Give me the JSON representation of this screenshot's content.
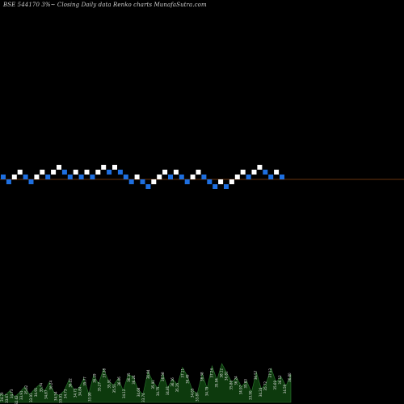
{
  "header": {
    "title": "BSE 544170  3%~   Closing Daily data  Renko  charts MunafaSutra.com"
  },
  "colors": {
    "background": "#000000",
    "up_brick": "#ffffff",
    "down_brick": "#1e6fe0",
    "reference_line": "#8b4513",
    "volume": "#0d3a0d",
    "volume_top": "#2e7d32",
    "volume_label": "#e0e0e0"
  },
  "chart_data": {
    "type": "renko",
    "brick_size_label": "3%",
    "bricks": [
      {
        "dir": "down",
        "level": 0
      },
      {
        "dir": "down",
        "level": -1
      },
      {
        "dir": "up",
        "level": 0
      },
      {
        "dir": "up",
        "level": 1
      },
      {
        "dir": "down",
        "level": 0
      },
      {
        "dir": "down",
        "level": -1
      },
      {
        "dir": "up",
        "level": 0
      },
      {
        "dir": "up",
        "level": 1
      },
      {
        "dir": "down",
        "level": 0
      },
      {
        "dir": "up",
        "level": 1
      },
      {
        "dir": "up",
        "level": 2
      },
      {
        "dir": "down",
        "level": 1
      },
      {
        "dir": "down",
        "level": 0
      },
      {
        "dir": "up",
        "level": 1
      },
      {
        "dir": "down",
        "level": 0
      },
      {
        "dir": "up",
        "level": 1
      },
      {
        "dir": "down",
        "level": 0
      },
      {
        "dir": "up",
        "level": 1
      },
      {
        "dir": "up",
        "level": 2
      },
      {
        "dir": "down",
        "level": 1
      },
      {
        "dir": "up",
        "level": 2
      },
      {
        "dir": "down",
        "level": 1
      },
      {
        "dir": "down",
        "level": 0
      },
      {
        "dir": "down",
        "level": -1
      },
      {
        "dir": "up",
        "level": 0
      },
      {
        "dir": "down",
        "level": -1
      },
      {
        "dir": "down",
        "level": -2
      },
      {
        "dir": "up",
        "level": -1
      },
      {
        "dir": "up",
        "level": 0
      },
      {
        "dir": "up",
        "level": 1
      },
      {
        "dir": "down",
        "level": 0
      },
      {
        "dir": "up",
        "level": 1
      },
      {
        "dir": "down",
        "level": 0
      },
      {
        "dir": "down",
        "level": -1
      },
      {
        "dir": "up",
        "level": 0
      },
      {
        "dir": "up",
        "level": 1
      },
      {
        "dir": "down",
        "level": 0
      },
      {
        "dir": "down",
        "level": -1
      },
      {
        "dir": "down",
        "level": -2
      },
      {
        "dir": "up",
        "level": -1
      },
      {
        "dir": "down",
        "level": -2
      },
      {
        "dir": "up",
        "level": -1
      },
      {
        "dir": "up",
        "level": 0
      },
      {
        "dir": "up",
        "level": 1
      },
      {
        "dir": "down",
        "level": 0
      },
      {
        "dir": "up",
        "level": 1
      },
      {
        "dir": "up",
        "level": 2
      },
      {
        "dir": "down",
        "level": 1
      },
      {
        "dir": "down",
        "level": 0
      },
      {
        "dir": "up",
        "level": 1
      },
      {
        "dir": "down",
        "level": 0
      }
    ],
    "reference_level": 0,
    "volume_labels": [
      "34.70",
      "33.67",
      "34.73",
      "32.62",
      "33.91",
      "35.62",
      "33.91",
      "34.91",
      "35.74",
      "34.87",
      "36.24",
      "34.54",
      "33.91",
      "34.73",
      "36.22",
      "34.73",
      "34.84",
      "35.77",
      "33.90",
      "36.19",
      "35.27",
      "37.38",
      "35.91",
      "35.51",
      "36.06",
      "34.12",
      "36.35",
      "36.24",
      "34.68",
      "33.74",
      "36.84",
      "35.91",
      "34.75",
      "36.58",
      "34.81",
      "36.26",
      "35.25",
      "37.11",
      "36.49",
      "34.65",
      "33.87",
      "36.38",
      "34.79",
      "37.24",
      "35.94",
      "38.12",
      "36.81",
      "35.86",
      "36.24",
      "34.97",
      "35.83",
      "33.90",
      "36.57",
      "34.24",
      "35.72",
      "37.13",
      "35.69",
      "36.12",
      "34.59",
      "36.80"
    ],
    "volume_values": [
      0.22,
      0.18,
      0.3,
      0.14,
      0.26,
      0.4,
      0.2,
      0.34,
      0.46,
      0.28,
      0.52,
      0.24,
      0.18,
      0.3,
      0.58,
      0.32,
      0.36,
      0.62,
      0.22,
      0.7,
      0.48,
      0.86,
      0.56,
      0.44,
      0.62,
      0.3,
      0.72,
      0.66,
      0.34,
      0.2,
      0.8,
      0.54,
      0.36,
      0.74,
      0.38,
      0.6,
      0.46,
      0.9,
      0.68,
      0.32,
      0.22,
      0.74,
      0.36,
      0.94,
      0.58,
      1.0,
      0.76,
      0.52,
      0.64,
      0.4,
      0.56,
      0.26,
      0.78,
      0.34,
      0.5,
      0.88,
      0.52,
      0.66,
      0.42,
      0.72
    ]
  }
}
